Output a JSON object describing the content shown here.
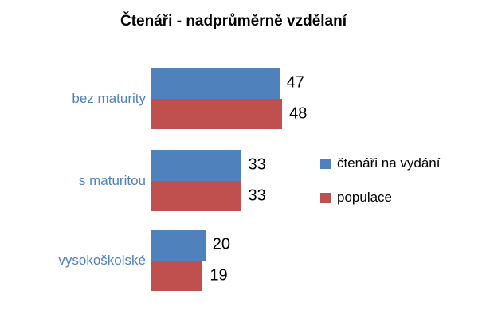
{
  "chart_data": {
    "type": "bar",
    "orientation": "horizontal",
    "title": "Čtenáři - nadprůměrně vzdělaní",
    "categories": [
      "bez maturity",
      "s maturitou",
      "vysokoškolské"
    ],
    "series": [
      {
        "name": "čtenáři na vydání",
        "color": "#4F81BD",
        "values": [
          47,
          33,
          20
        ]
      },
      {
        "name": "populace",
        "color": "#C0504D",
        "values": [
          48,
          33,
          19
        ]
      }
    ],
    "xlim": [
      0,
      50
    ],
    "value_labels": true,
    "legend_position": "right",
    "grid": false,
    "axis_lines": false,
    "category_label_color": "#4F81BD",
    "title_color": "#000000",
    "value_label_color": "#000000",
    "background": "#FFFFFF"
  }
}
